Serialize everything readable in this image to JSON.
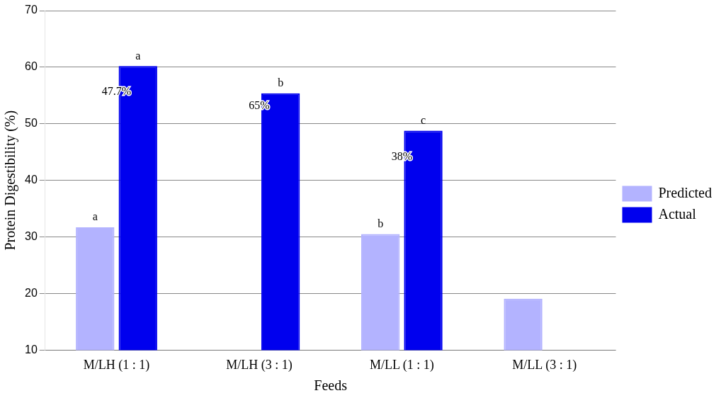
{
  "chart_data": {
    "type": "bar",
    "xlabel": "Feeds",
    "ylabel": "Protein Digestibility (%)",
    "categories": [
      "M/LH (1 : 1)",
      "M/LH (3 : 1)",
      "M/LL (1 : 1)",
      "M/LL (3 : 1)"
    ],
    "series": [
      {
        "name": "Predicted",
        "color": "#b3b3ff",
        "values": [
          31.7,
          null,
          30.5,
          19.1
        ],
        "value_labels": [
          "a",
          null,
          "b",
          null
        ]
      },
      {
        "name": "Actual",
        "color": "#0000ee",
        "values": [
          60.2,
          55.4,
          48.8,
          null
        ],
        "value_labels": [
          "a",
          "b",
          "c",
          null
        ]
      }
    ],
    "ylim": [
      10,
      70
    ],
    "yticks": [
      10,
      20,
      30,
      40,
      50,
      60,
      70
    ],
    "grid": "y",
    "legend": "right",
    "annotations": [
      {
        "text": "47.7%",
        "x": "M/LH (1 : 1)",
        "y": 55.6
      },
      {
        "text": "65%",
        "x": "M/LH (3 : 1)",
        "y": 53.1
      },
      {
        "text": "38%",
        "x": "M/LL (1 : 1)",
        "y": 44.1
      }
    ]
  }
}
